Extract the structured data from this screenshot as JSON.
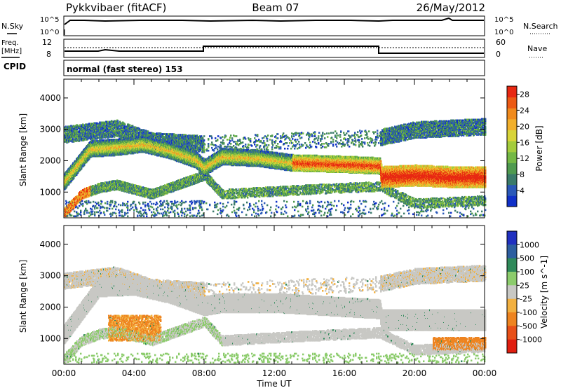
{
  "header": {
    "radar": "Pykkvibaer (fitACF)",
    "beam": "Beam 07",
    "date": "26/May/2012"
  },
  "params": {
    "nsky_label": "N.Sky",
    "nsearch_label": "N.Search",
    "freq_label_top": "Freq.",
    "freq_label_bottom": "[MHz]",
    "nave_label": "Nave",
    "cpid_label": "CPID",
    "cpid_value": "normal (fast stereo) 153",
    "noise_ticks": [
      "10^5",
      "10^0"
    ],
    "freq_ticks": [
      "12",
      "8"
    ],
    "nave_ticks": [
      "60",
      "0"
    ]
  },
  "x_axis": {
    "label": "Time UT",
    "ticks": [
      "00:00",
      "04:00",
      "08:00",
      "12:00",
      "16:00",
      "20:00",
      "00:00"
    ]
  },
  "chart_data": [
    {
      "type": "heatmap",
      "title": "Power",
      "ylabel": "Slant Range [km]",
      "xlabel": "Time UT",
      "y_ticks": [
        "1000",
        "2000",
        "3000",
        "4000"
      ],
      "ylim": [
        180,
        4600
      ],
      "xlim": [
        "00:00",
        "24:00"
      ],
      "colorbar": {
        "label": "Power [dB]",
        "ticks": [
          "4",
          "8",
          "12",
          "16",
          "20",
          "24",
          "28"
        ],
        "colors": [
          "#1030c8",
          "#2a58b8",
          "#3a7a6a",
          "#4f9a4f",
          "#74b844",
          "#a4cc3c",
          "#d8d438",
          "#f2b02c",
          "#f08a1c",
          "#ec5a14",
          "#e82812"
        ]
      },
      "bands": [
        {
          "name": "main echo band",
          "points": [
            [
              0.0,
              1300
            ],
            [
              1.5,
              2350
            ],
            [
              3.0,
              2400
            ],
            [
              4.5,
              2500
            ],
            [
              6.0,
              2300
            ],
            [
              7.5,
              2000
            ],
            [
              8.0,
              1750
            ],
            [
              9.0,
              2100
            ],
            [
              11.0,
              2050
            ],
            [
              13.0,
              1900
            ],
            [
              16.0,
              1850
            ],
            [
              18.0,
              1800
            ],
            [
              18.1,
              1450
            ],
            [
              20.0,
              1500
            ],
            [
              22.0,
              1450
            ],
            [
              24.0,
              1450
            ]
          ]
        },
        {
          "name": "lower echo band",
          "points": [
            [
              0.0,
              300
            ],
            [
              1.0,
              900
            ],
            [
              2.0,
              1100
            ],
            [
              3.0,
              1200
            ],
            [
              5.0,
              900
            ],
            [
              6.5,
              1200
            ],
            [
              8.0,
              1500
            ],
            [
              9.0,
              900
            ],
            [
              14.0,
              1050
            ],
            [
              18.0,
              1150
            ],
            [
              20.0,
              600
            ],
            [
              24.0,
              700
            ]
          ]
        },
        {
          "name": "upper echo band",
          "points": [
            [
              0.0,
              2800
            ],
            [
              3.0,
              3000
            ],
            [
              5.0,
              2600
            ],
            [
              8.0,
              2500
            ],
            [
              18.0,
              2700
            ],
            [
              20.0,
              2950
            ],
            [
              24.0,
              3050
            ]
          ]
        }
      ]
    },
    {
      "type": "heatmap",
      "title": "Velocity",
      "ylabel": "Slant Range [km]",
      "xlabel": "Time UT",
      "y_ticks": [
        "1000",
        "2000",
        "3000",
        "4000"
      ],
      "ylim": [
        180,
        4600
      ],
      "xlim": [
        "00:00",
        "24:00"
      ],
      "colorbar": {
        "label": "Velocity [m s^-1]",
        "ticks": [
          "1000",
          "500",
          "100",
          "25",
          "-25",
          "-100",
          "-500",
          "-1000"
        ],
        "colors": [
          "#2030c0",
          "#2d5ea0",
          "#2f8a5a",
          "#8ccc6c",
          "#c8c8c4",
          "#f2b040",
          "#ee8420",
          "#e85018",
          "#e01e10"
        ]
      },
      "ground_scatter_band": [
        [
          0.0,
          1100
        ],
        [
          2.0,
          2600
        ],
        [
          4.0,
          2650
        ],
        [
          6.0,
          2400
        ],
        [
          8.0,
          2000
        ],
        [
          9.0,
          2100
        ],
        [
          12.0,
          2100
        ],
        [
          18.0,
          1900
        ],
        [
          18.1,
          1550
        ],
        [
          24.0,
          1550
        ]
      ],
      "negative_velocity_patch": {
        "x_range": [
          "02:30",
          "05:30"
        ],
        "y_range": [
          900,
          1700
        ]
      }
    }
  ]
}
